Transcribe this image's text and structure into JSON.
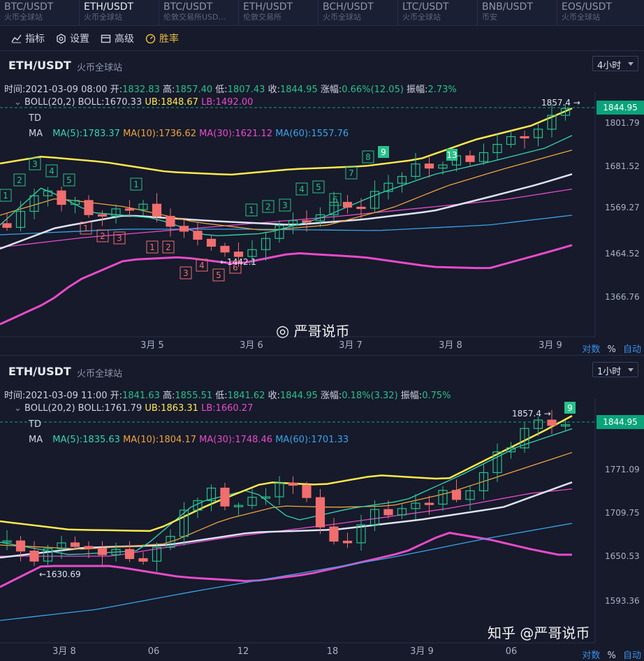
{
  "tabs": [
    {
      "pair": "BTC/USDT",
      "exchange": "火币全球站"
    },
    {
      "pair": "ETH/USDT",
      "exchange": "火币全球站",
      "active": true
    },
    {
      "pair": "BTC/USDT",
      "exchange": "伦敦交易所USD..."
    },
    {
      "pair": "ETH/USDT",
      "exchange": "伦敦交易所"
    },
    {
      "pair": "BCH/USDT",
      "exchange": "火币全球站"
    },
    {
      "pair": "LTC/USDT",
      "exchange": "火币全球站"
    },
    {
      "pair": "BNB/USDT",
      "exchange": "币安"
    },
    {
      "pair": "EOS/USDT",
      "exchange": "火币全球站"
    }
  ],
  "toolbar": {
    "indicators": "指标",
    "settings": "设置",
    "advanced": "高级",
    "winrate": "胜率"
  },
  "colors": {
    "up": "#29c08a",
    "down": "#f06e6e",
    "boll_mid": "#ffe94c",
    "ma5": "#35d6b0",
    "ma10": "#f0a33c",
    "ma30": "#e84bc8",
    "ma60": "#3aa3e8",
    "price_tag": "#0aa37a"
  },
  "panels": [
    {
      "title": "ETH/USDT",
      "exchange": "火币全球站",
      "interval": "4小时",
      "info": {
        "time_label": "时间:",
        "time": "2021-03-09 08:00",
        "open_label": "开:",
        "open": "1832.83",
        "high_label": "高:",
        "high": "1857.40",
        "low_label": "低:",
        "low": "1807.43",
        "close_label": "收:",
        "close": "1844.95",
        "change_label": "涨幅:",
        "change": "0.66%(12.05)",
        "amp_label": "振幅:",
        "amp": "2.73%"
      },
      "boll": {
        "label": "BOLL(20,2)",
        "mid": "BOLL:1670.33",
        "ub": "UB:1848.67",
        "lb": "LB:1492.00"
      },
      "td": "TD",
      "ma": {
        "label": "MA",
        "ma5": "MA(5):1783.37",
        "ma10": "MA(10):1736.62",
        "ma30": "MA(30):1621.12",
        "ma60": "MA(60):1557.76"
      },
      "price_axis": [
        "1801.79",
        "1681.52",
        "1569.27",
        "1464.52",
        "1366.76"
      ],
      "price_tag": "1844.95",
      "time_axis": [
        "3月 5",
        "3月 6",
        "3月 7",
        "3月 8",
        "3月 9"
      ],
      "annotations": {
        "high": "1857.4 →",
        "low": "←1442.1"
      },
      "corner": {
        "log": "对数",
        "pct": "%",
        "auto": "自动"
      },
      "watermark": "严哥说币"
    },
    {
      "title": "ETH/USDT",
      "exchange": "火币全球站",
      "interval": "1小时",
      "info": {
        "time_label": "时间:",
        "time": "2021-03-09 11:00",
        "open_label": "开:",
        "open": "1841.63",
        "high_label": "高:",
        "high": "1855.51",
        "low_label": "低:",
        "low": "1841.62",
        "close_label": "收:",
        "close": "1844.95",
        "change_label": "涨幅:",
        "change": "0.18%(3.32)",
        "amp_label": "振幅:",
        "amp": "0.75%"
      },
      "boll": {
        "label": "BOLL(20,2)",
        "mid": "BOLL:1761.79",
        "ub": "UB:1863.31",
        "lb": "LB:1660.27"
      },
      "td": "TD",
      "ma": {
        "label": "MA",
        "ma5": "MA(5):1835.63",
        "ma10": "MA(10):1804.17",
        "ma30": "MA(30):1748.46",
        "ma60": "MA(60):1701.33"
      },
      "price_axis": [
        "1834.83",
        "1771.09",
        "1709.75",
        "1650.53",
        "1593.36"
      ],
      "price_tag": "1844.95",
      "time_axis": [
        "3月 8",
        "06",
        "12",
        "18",
        "3月 9",
        "06"
      ],
      "annotations": {
        "high": "1857.4 →",
        "low": "←1630.69"
      },
      "corner": {
        "log": "对数",
        "pct": "%",
        "auto": "自动"
      },
      "watermark": "知乎 @严哥说币"
    }
  ]
}
